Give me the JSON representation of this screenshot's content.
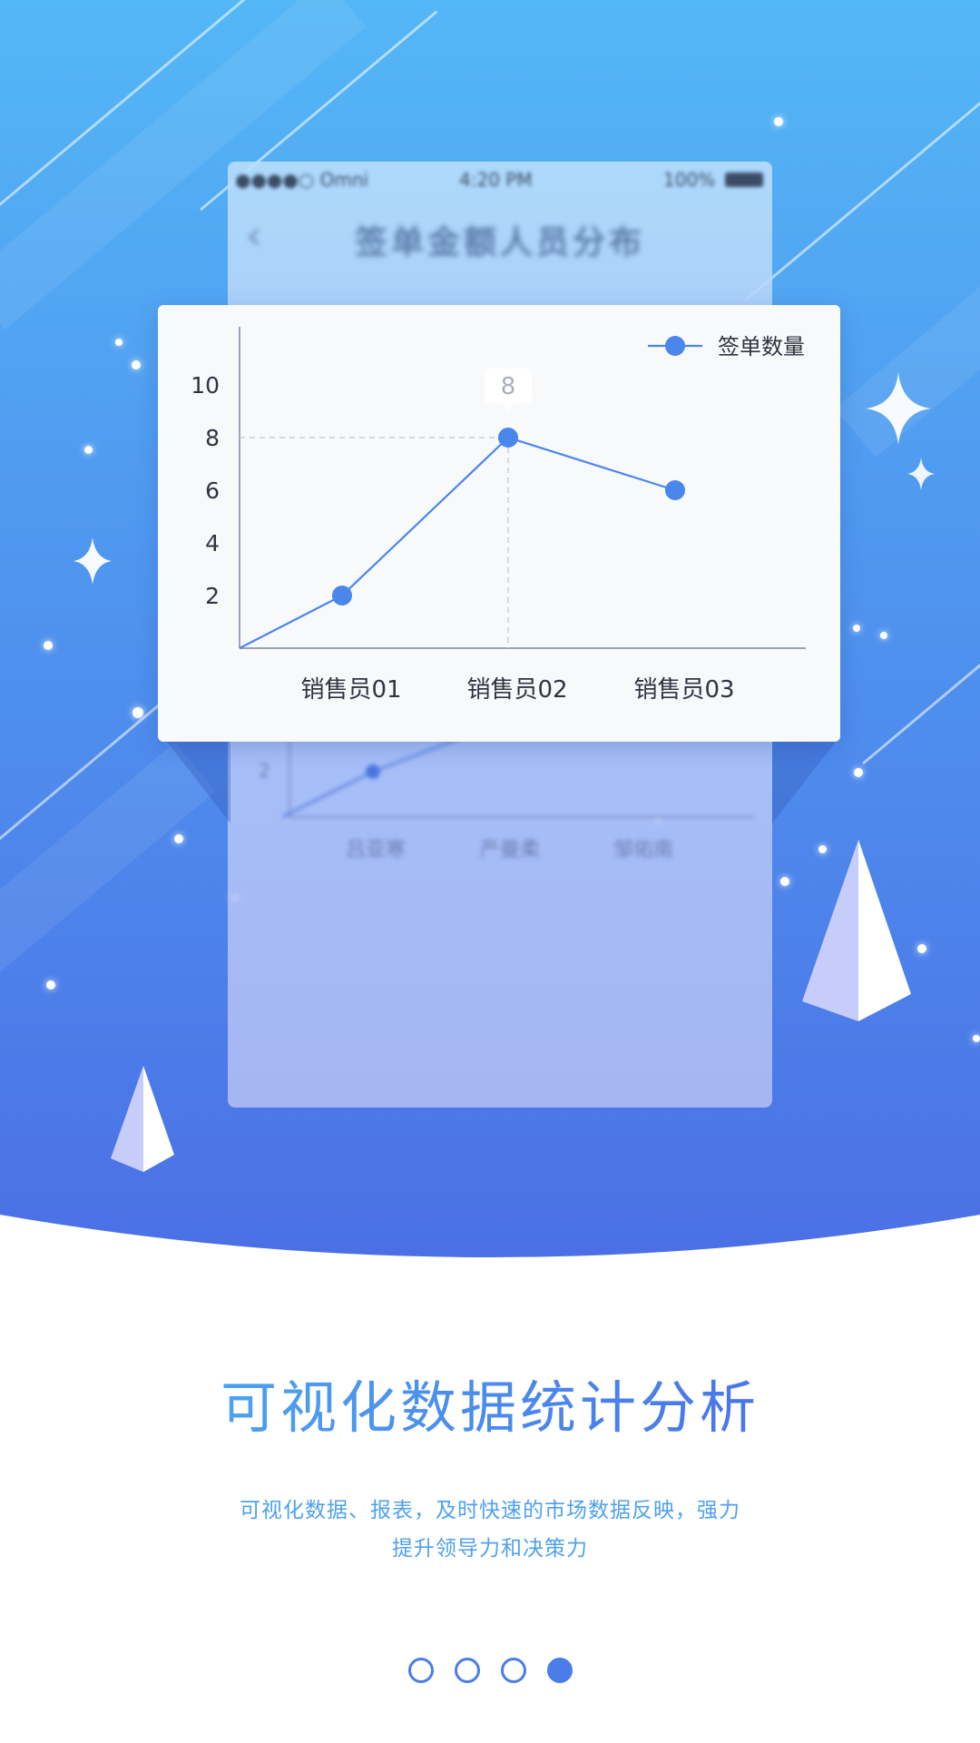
{
  "phone_mockup": {
    "status": {
      "carrier": "●●●●○ Omni",
      "time": "4:20 PM",
      "battery": "100%"
    },
    "nav_title": "签单金额人员分布",
    "back_icon": "chevron-left-icon",
    "categories": [
      "吕亚寒",
      "严曼柔",
      "邹佑南"
    ]
  },
  "chart_data": {
    "type": "line",
    "categories": [
      "销售员01",
      "销售员02",
      "销售员03"
    ],
    "series": [
      {
        "name": "签单数量",
        "values": [
          2,
          8,
          6
        ],
        "color": "#4a86ec"
      }
    ],
    "yticks": [
      2,
      4,
      6,
      8,
      10
    ],
    "ylim": [
      0,
      12
    ],
    "highlight": {
      "category": "销售员02",
      "value": 8,
      "label": "8"
    },
    "legend_position": "top-right",
    "grid": false
  },
  "content": {
    "title": "可视化数据统计分析",
    "subtitle_line1": "可视化数据、报表，及时快速的市场数据反映，强力",
    "subtitle_line2": "提升领导力和决策力"
  },
  "pager": {
    "count": 4,
    "active_index": 3,
    "color": "#4a7de8"
  }
}
